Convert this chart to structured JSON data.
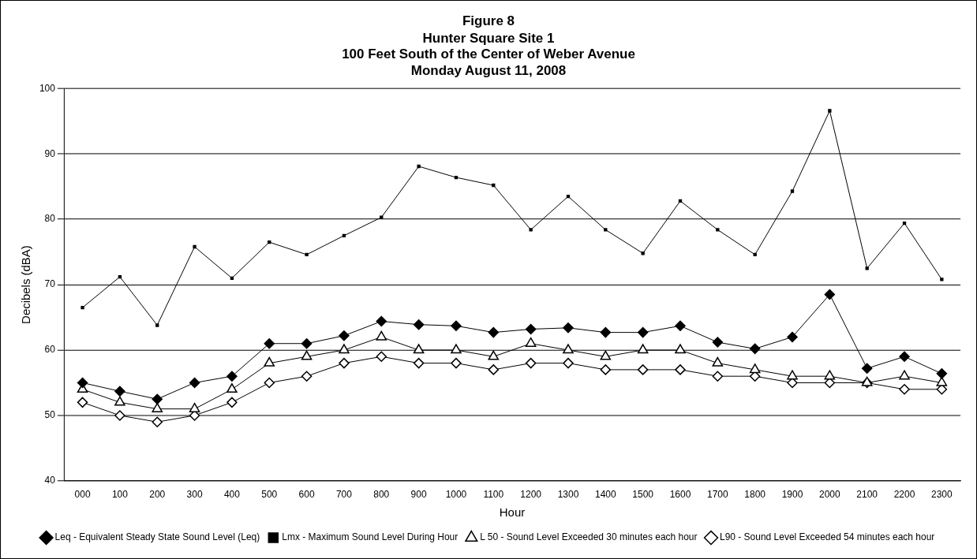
{
  "chart_data": {
    "type": "line",
    "title": "Figure 8",
    "subtitle": "Hunter Square Site 1\n100 Feet South of the Center of Weber Avenue\nMonday August 11, 2008",
    "xlabel": "Hour",
    "ylabel": "Decibels (dBA)",
    "categories": [
      "000",
      "100",
      "200",
      "300",
      "400",
      "500",
      "600",
      "700",
      "800",
      "900",
      "1000",
      "1100",
      "1200",
      "1300",
      "1400",
      "1500",
      "1600",
      "1700",
      "1800",
      "1900",
      "2000",
      "2100",
      "2200",
      "2300"
    ],
    "series": [
      {
        "name": "Leq - Equivalent Steady State Sound Level (Leq)",
        "color": "#000000",
        "marker": "diamond",
        "values": [
          55,
          53.7,
          52.5,
          55,
          56,
          61,
          61,
          62.2,
          64.4,
          63.9,
          63.7,
          62.7,
          63.2,
          63.4,
          62.7,
          62.7,
          63.7,
          61.2,
          60.2,
          62,
          68.5,
          57.2,
          59,
          56.4
        ]
      },
      {
        "name": "Lmx - Maximum Sound Level During Hour",
        "color": "#000000",
        "marker": "square",
        "values": [
          66.5,
          71.2,
          63.8,
          75.8,
          71,
          76.5,
          74.6,
          77.5,
          80.3,
          88.1,
          86.4,
          85.2,
          78.4,
          83.5,
          78.4,
          74.8,
          82.8,
          78.4,
          74.6,
          84.3,
          96.6,
          72.5,
          79.4,
          70.8
        ]
      },
      {
        "name": "L 50 - Sound Level Exceeded 30 minutes each hour",
        "color": "#000000",
        "marker": "triangle",
        "values": [
          54,
          52,
          51,
          51,
          54,
          58,
          59,
          60,
          62,
          60,
          60,
          59,
          61,
          60,
          59,
          60,
          60,
          58,
          57,
          56,
          56,
          55,
          56,
          55
        ]
      },
      {
        "name": "L90 - Sound Level Exceeded 54 minutes each hour",
        "color": "#000000",
        "marker": "diamond",
        "values": [
          52,
          50,
          49,
          50,
          52,
          55,
          56,
          58,
          59,
          58,
          58,
          57,
          58,
          58,
          57,
          57,
          57,
          56,
          56,
          55,
          55,
          55,
          54,
          54
        ]
      }
    ],
    "ylim": [
      40,
      100
    ],
    "yticks": [
      40,
      50,
      60,
      70,
      80,
      90,
      100
    ],
    "grid": "y",
    "legend": "bottom",
    "line_style": "solid"
  }
}
